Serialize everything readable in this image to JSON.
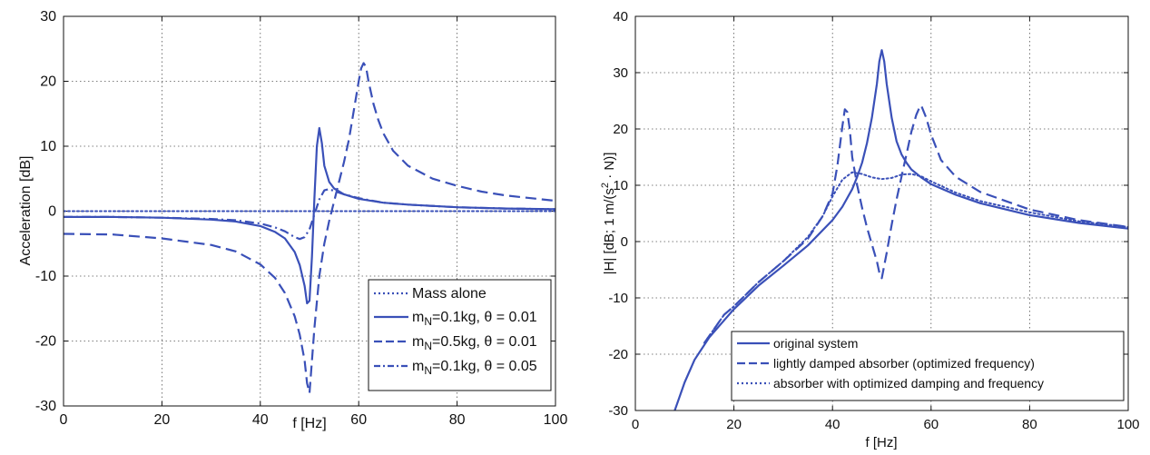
{
  "chart_data": [
    {
      "type": "line",
      "xlabel": "f [Hz]",
      "ylabel": "Acceleration [dB]",
      "xlim": [
        0,
        100
      ],
      "ylim": [
        -30,
        30
      ],
      "xticks": [
        "0",
        "20",
        "40",
        "60",
        "80",
        "100"
      ],
      "yticks": [
        "-30",
        "-20",
        "-10",
        "0",
        "10",
        "20",
        "30"
      ],
      "grid": true,
      "legend_position": "bottom-right",
      "series": [
        {
          "name": "Mass alone",
          "style": "dotted",
          "color": "#3a50b8",
          "x": [
            0,
            100
          ],
          "y": [
            0,
            0
          ]
        },
        {
          "name": "m_N=0.1kg, θ = 0.01",
          "legend_main": "m",
          "legend_sub": "N",
          "legend_rest": "=0.1kg, θ = 0.01",
          "style": "solid",
          "color": "#3a50b8",
          "x": [
            0,
            10,
            20,
            30,
            35,
            40,
            43,
            45,
            47,
            48,
            49,
            49.5,
            50,
            50.5,
            51,
            51.5,
            52,
            52.5,
            53,
            54,
            55,
            57,
            60,
            65,
            70,
            80,
            90,
            100
          ],
          "y": [
            -0.9,
            -0.9,
            -1.0,
            -1.3,
            -1.6,
            -2.3,
            -3.2,
            -4.2,
            -6.3,
            -8.3,
            -11.5,
            -14.2,
            -13.8,
            -7.0,
            2.0,
            10.0,
            12.8,
            10.5,
            7.0,
            4.5,
            3.5,
            2.6,
            1.9,
            1.3,
            1.0,
            0.6,
            0.4,
            0.3
          ]
        },
        {
          "name": "m_N=0.5kg, θ = 0.01",
          "legend_main": "m",
          "legend_sub": "N",
          "legend_rest": "=0.5kg,  θ = 0.01",
          "style": "dashed",
          "color": "#3a50b8",
          "x": [
            0,
            10,
            20,
            30,
            35,
            40,
            43,
            45,
            47,
            48,
            49,
            49.5,
            50,
            51,
            52,
            53,
            54,
            55,
            56,
            57,
            58,
            59,
            60,
            60.5,
            61,
            61.5,
            62,
            63,
            64,
            65,
            67,
            70,
            75,
            80,
            85,
            90,
            95,
            100
          ],
          "y": [
            -3.5,
            -3.6,
            -4.2,
            -5.2,
            -6.2,
            -8.2,
            -10.3,
            -12.6,
            -16.2,
            -19.0,
            -23.0,
            -26.5,
            -28.0,
            -18.0,
            -10.0,
            -5.0,
            -1.5,
            1.5,
            4.5,
            7.5,
            11.0,
            15.5,
            20.0,
            22.0,
            22.8,
            22.2,
            20.0,
            16.5,
            14.0,
            12.0,
            9.3,
            7.0,
            5.0,
            3.9,
            3.0,
            2.4,
            2.0,
            1.6
          ]
        },
        {
          "name": "m_N=0.1kg, θ = 0.05",
          "legend_main": "m",
          "legend_sub": "N",
          "legend_rest": "=0.1kg, θ = 0.05",
          "style": "dashdot",
          "color": "#3a50b8",
          "x": [
            0,
            10,
            20,
            30,
            35,
            40,
            43,
            45,
            47,
            48,
            49,
            50,
            51,
            52,
            53,
            54,
            55,
            57,
            60,
            65,
            70,
            80,
            90,
            100
          ],
          "y": [
            -0.9,
            -0.9,
            -1.0,
            -1.2,
            -1.4,
            -1.9,
            -2.5,
            -3.1,
            -4.0,
            -4.3,
            -4.0,
            -2.8,
            -0.5,
            1.8,
            3.2,
            3.4,
            3.1,
            2.6,
            2.0,
            1.3,
            1.0,
            0.6,
            0.4,
            0.3
          ]
        }
      ]
    },
    {
      "type": "line",
      "xlabel": "f [Hz]",
      "ylabel": "|H| [dB; 1 m/(s² · N)]",
      "ylabel_pre": "|H| [dB; 1 m/(s",
      "ylabel_sup": "2",
      "ylabel_post": " · N)]",
      "xlim": [
        0,
        100
      ],
      "ylim": [
        -30,
        40
      ],
      "xticks": [
        "0",
        "20",
        "40",
        "60",
        "80",
        "100"
      ],
      "yticks": [
        "-30",
        "-20",
        "-10",
        "0",
        "10",
        "20",
        "30",
        "40"
      ],
      "grid": true,
      "legend_position": "bottom-right",
      "series": [
        {
          "name": "original system",
          "style": "solid",
          "color": "#3a50b8",
          "x": [
            8,
            10,
            12,
            15,
            18,
            20,
            25,
            30,
            35,
            40,
            42,
            44,
            45,
            46,
            47,
            48,
            49,
            49.5,
            50,
            50.5,
            51,
            52,
            53,
            54,
            55,
            56,
            58,
            60,
            65,
            70,
            80,
            90,
            100
          ],
          "y": [
            -30,
            -25,
            -21,
            -17,
            -14,
            -12,
            -7.8,
            -4.3,
            -0.7,
            3.8,
            6.2,
            9.3,
            11.5,
            14.0,
            17.5,
            22.0,
            28.0,
            32.0,
            34.0,
            32.0,
            28.0,
            22.0,
            17.8,
            15.5,
            14.0,
            12.8,
            11.4,
            10.2,
            8.3,
            6.8,
            4.7,
            3.3,
            2.3
          ]
        },
        {
          "name": "lightly damped absorber (optimized frequency)",
          "style": "dashed",
          "color": "#3a50b8",
          "x": [
            14,
            16,
            18,
            20,
            25,
            30,
            35,
            38,
            40,
            41,
            42,
            42.5,
            43,
            43.5,
            44,
            45,
            46,
            47,
            48,
            49,
            49.5,
            50,
            51,
            52,
            53,
            54,
            55,
            56,
            57,
            57.5,
            58,
            59,
            60,
            62,
            65,
            70,
            80,
            90,
            100
          ],
          "y": [
            -18,
            -15.5,
            -13,
            -11.5,
            -7.2,
            -3.5,
            0.5,
            4.5,
            8.5,
            13.5,
            20.5,
            23.5,
            23.0,
            20.0,
            15.0,
            10.0,
            6.0,
            2.5,
            -0.5,
            -3.5,
            -5.5,
            -6.5,
            -2.0,
            3.0,
            7.5,
            11.5,
            15.5,
            19.5,
            22.5,
            23.5,
            24.2,
            22.0,
            19.0,
            14.5,
            11.5,
            8.8,
            5.7,
            3.8,
            2.6
          ]
        },
        {
          "name": "absorber with optimized damping and frequency",
          "style": "dotted",
          "color": "#3a50b8",
          "x": [
            14,
            16,
            18,
            20,
            25,
            30,
            35,
            38,
            40,
            42,
            44,
            46,
            48,
            50,
            52,
            54,
            56,
            58,
            60,
            65,
            70,
            80,
            90,
            100
          ],
          "y": [
            -18,
            -15.5,
            -13,
            -11.5,
            -7.2,
            -3.5,
            0.8,
            4.5,
            8.0,
            11.0,
            12.3,
            12.0,
            11.4,
            11.1,
            11.3,
            11.9,
            12.0,
            11.6,
            10.7,
            8.7,
            7.2,
            5.2,
            3.6,
            2.6
          ]
        }
      ]
    }
  ]
}
